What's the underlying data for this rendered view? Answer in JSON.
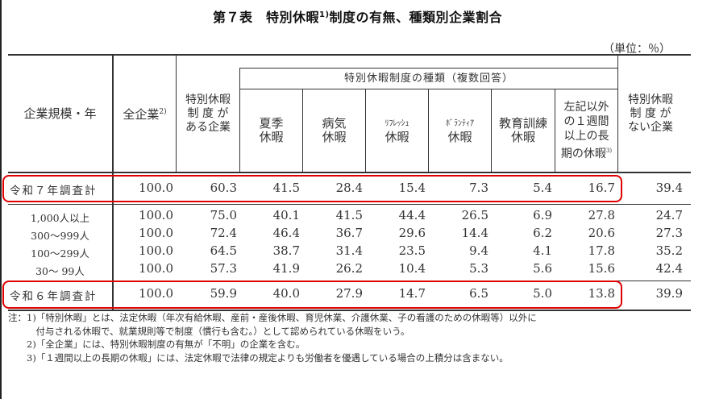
{
  "title": {
    "prefix": "第７表　特別休暇",
    "superscript": "1)",
    "suffix": "制度の有無、種類別企業割合"
  },
  "unit_label": "（単位：％）",
  "table": {
    "headers": {
      "row_label": "企業規模・年",
      "all_companies": "全企業",
      "all_companies_note": "2)",
      "has_system_line1": "特別休暇",
      "has_system_line2": "制 度 が",
      "has_system_line3": "ある企業",
      "types_group": "特別休暇制度の種類（複数回答）",
      "summer_line1": "夏季",
      "summer_line2": "休暇",
      "sick_line1": "病気",
      "sick_line2": "休暇",
      "refresh_line1": "ﾘﾌﾚｯｼｭ",
      "refresh_line2": "休暇",
      "volunteer_line1": "ﾎﾞﾗﾝﾃｨｱ",
      "volunteer_line2": "休暇",
      "education_line1": "教育訓練",
      "education_line2": "休暇",
      "long_line1": "左記以外",
      "long_line2": "の１週間",
      "long_line3": "以上の長",
      "long_line4": "期の休暇",
      "long_note": "3)",
      "no_system_line1": "特別休暇",
      "no_system_line2": "制 度 が",
      "no_system_line3": "ない企業"
    },
    "rows": [
      {
        "label": "令和７年調査計",
        "values": [
          "100.0",
          "60.3",
          "41.5",
          "28.4",
          "15.4",
          "7.3",
          "5.4",
          "16.7",
          "39.4"
        ],
        "highlighted": true
      },
      {
        "label": "1,000人以上",
        "values": [
          "100.0",
          "75.0",
          "40.1",
          "41.5",
          "44.4",
          "26.5",
          "6.9",
          "27.8",
          "24.7"
        ]
      },
      {
        "label": "300～999人",
        "values": [
          "100.0",
          "72.4",
          "46.4",
          "36.7",
          "29.6",
          "14.4",
          "6.2",
          "20.6",
          "27.3"
        ]
      },
      {
        "label": "100～299人",
        "values": [
          "100.0",
          "64.5",
          "38.7",
          "31.4",
          "23.5",
          "9.4",
          "4.1",
          "17.8",
          "35.2"
        ]
      },
      {
        "label": "30～ 99人",
        "values": [
          "100.0",
          "57.3",
          "41.9",
          "26.2",
          "10.4",
          "5.3",
          "5.6",
          "15.6",
          "42.4"
        ]
      },
      {
        "label": "令和６年調査計",
        "values": [
          "100.0",
          "59.9",
          "40.0",
          "27.9",
          "14.7",
          "6.5",
          "5.0",
          "13.8",
          "39.9"
        ],
        "highlighted": true
      }
    ]
  },
  "notes": [
    "注：1)「特別休暇」とは、法定休暇（年次有給休暇、産前・産後休暇、育児休業、介護休業、子の看護のための休暇等）以外に",
    "　　　付与される休暇で、就業規則等で制度（慣行も含む。）として認められている休暇をいう。",
    "　　2)「全企業」には、特別休暇制度の有無が「不明」の企業を含む。",
    "　　3)「１週間以上の長期の休暇」には、法定休暇で法律の規定よりも労働者を優遇している場合の上積分は含まない。"
  ],
  "colors": {
    "highlight": "#e00000",
    "rule": "#333333"
  }
}
